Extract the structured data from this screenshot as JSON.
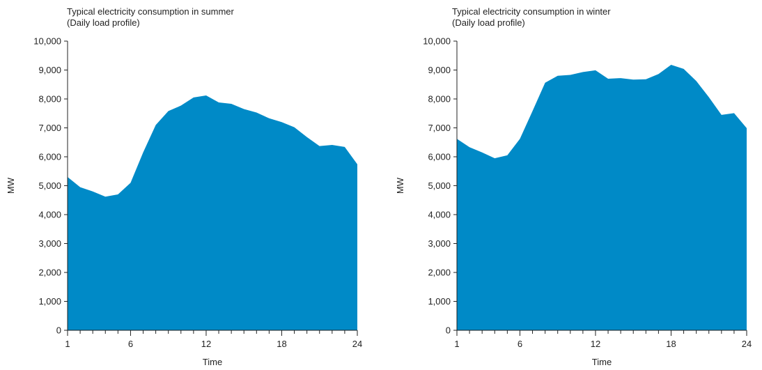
{
  "chart_data": [
    {
      "type": "area",
      "title": "Typical electricity consumption in summer",
      "subtitle": "(Daily load profile)",
      "xlabel": "Time",
      "ylabel": "MW",
      "x": [
        1,
        2,
        3,
        4,
        5,
        6,
        7,
        8,
        9,
        10,
        11,
        12,
        13,
        14,
        15,
        16,
        17,
        18,
        19,
        20,
        21,
        22,
        23,
        24
      ],
      "x_tick_labels": [
        "1",
        "6",
        "12",
        "18",
        "24"
      ],
      "y_tick_labels": [
        "0",
        "1,000",
        "2,000",
        "3,000",
        "4,000",
        "5,000",
        "6,000",
        "7,000",
        "8,000",
        "9,000",
        "10,000"
      ],
      "series": [
        {
          "values": [
            5300,
            4950,
            4800,
            4620,
            4700,
            5100,
            6150,
            7100,
            7580,
            7770,
            8050,
            8120,
            7880,
            7830,
            7650,
            7530,
            7330,
            7200,
            7020,
            6680,
            6370,
            6410,
            6340,
            5740
          ]
        }
      ],
      "xlim": [
        1,
        24
      ],
      "ylim": [
        0,
        10000
      ],
      "grid": false,
      "color": "#008ac7"
    },
    {
      "type": "area",
      "title": "Typical electricity consumption in winter",
      "subtitle": "(Daily load profile)",
      "xlabel": "Time",
      "ylabel": "MW",
      "x": [
        1,
        2,
        3,
        4,
        5,
        6,
        7,
        8,
        9,
        10,
        11,
        12,
        13,
        14,
        15,
        16,
        17,
        18,
        19,
        20,
        21,
        22,
        23,
        24
      ],
      "x_tick_labels": [
        "1",
        "6",
        "12",
        "18",
        "24"
      ],
      "y_tick_labels": [
        "0",
        "1,000",
        "2,000",
        "3,000",
        "4,000",
        "5,000",
        "6,000",
        "7,000",
        "8,000",
        "9,000",
        "10,000"
      ],
      "series": [
        {
          "values": [
            6620,
            6330,
            6150,
            5950,
            6050,
            6620,
            7580,
            8560,
            8800,
            8830,
            8930,
            8990,
            8700,
            8720,
            8670,
            8680,
            8860,
            9180,
            9040,
            8620,
            8060,
            7450,
            7510,
            6990
          ]
        }
      ],
      "xlim": [
        1,
        24
      ],
      "ylim": [
        0,
        10000
      ],
      "grid": false,
      "color": "#008ac7"
    }
  ]
}
